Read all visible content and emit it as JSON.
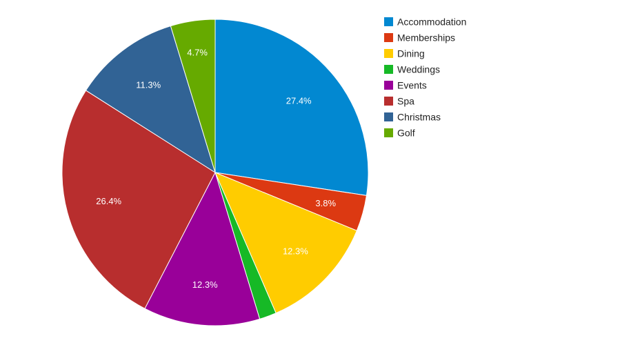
{
  "chart_data": {
    "type": "pie",
    "title": "",
    "legend_position": "right",
    "labels_shown": [
      "27.4%",
      "3.8%",
      "12.3%",
      "",
      "12.3%",
      "26.4%",
      "11.3%",
      "4.7%"
    ],
    "slices": [
      {
        "name": "Accommodation",
        "value": 27.4,
        "label": "27.4%",
        "color": "#0288d1"
      },
      {
        "name": "Memberships",
        "value": 3.8,
        "label": "3.8%",
        "color": "#dc3912"
      },
      {
        "name": "Dining",
        "value": 12.3,
        "label": "12.3%",
        "color": "#ffcc00"
      },
      {
        "name": "Weddings",
        "value": 1.8,
        "label": "",
        "color": "#16b926"
      },
      {
        "name": "Events",
        "value": 12.3,
        "label": "12.3%",
        "color": "#990099"
      },
      {
        "name": "Spa",
        "value": 26.4,
        "label": "26.4%",
        "color": "#b82e2e"
      },
      {
        "name": "Christmas",
        "value": 11.3,
        "label": "11.3%",
        "color": "#316395"
      },
      {
        "name": "Golf",
        "value": 4.7,
        "label": "4.7%",
        "color": "#66aa00"
      }
    ]
  }
}
